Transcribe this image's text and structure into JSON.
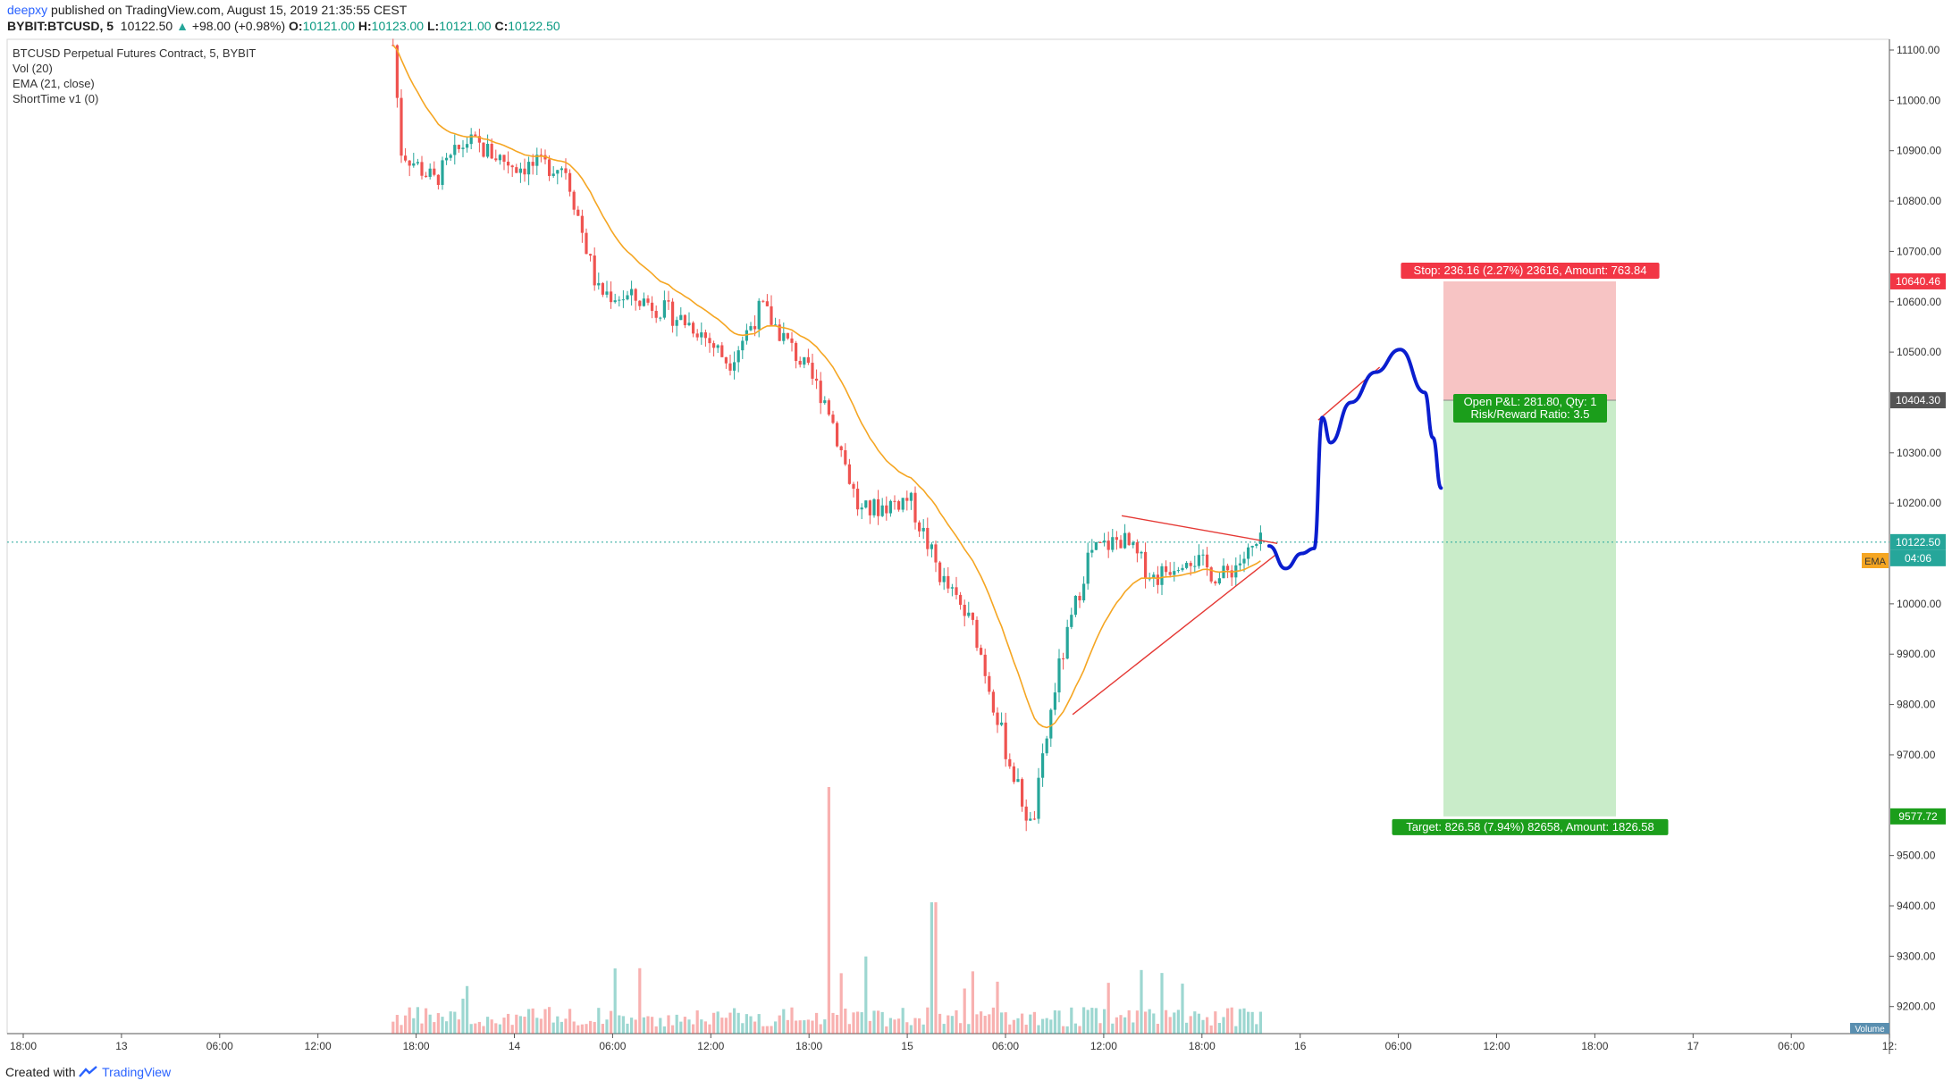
{
  "header": {
    "publisher": "deepxy",
    "published_text": "published on TradingView.com, August 15, 2019 21:35:55 CEST",
    "symbol": "BYBIT:BTCUSD, 5",
    "last": "10122.50",
    "change": "+98.00 (+0.98%)",
    "open_label": "O:",
    "open": "10121.00",
    "high_label": "H:",
    "high": "10123.00",
    "low_label": "L:",
    "low": "10121.00",
    "close_label": "C:",
    "close": "10122.50"
  },
  "legend": {
    "title": "BTCUSD Perpetual Futures Contract, 5, BYBIT",
    "vol": "Vol (20)",
    "ema": "EMA (21, close)",
    "shorttime": "ShortTime v1 (0)"
  },
  "price_axis": {
    "ticks": [
      "11100.00",
      "11000.00",
      "10900.00",
      "10800.00",
      "10700.00",
      "10600.00",
      "10500.00",
      "10300.00",
      "10200.00",
      "10000.00",
      "9900.00",
      "9800.00",
      "9700.00",
      "9500.00",
      "9400.00",
      "9300.00",
      "9200.00"
    ],
    "labels": {
      "stop": "10640.46",
      "entry": "10404.30",
      "last": "10122.50",
      "countdown": "04:06",
      "target": "9577.72",
      "ema": "EMA",
      "volume": "Volume"
    }
  },
  "time_axis": {
    "ticks": [
      "18:00",
      "13",
      "06:00",
      "12:00",
      "18:00",
      "14",
      "06:00",
      "12:00",
      "18:00",
      "15",
      "06:00",
      "12:00",
      "18:00",
      "16",
      "06:00",
      "12:00",
      "18:00",
      "17",
      "06:00",
      "12:"
    ]
  },
  "position": {
    "stop_text": "Stop: 236.16 (2.27%) 23616, Amount: 763.84",
    "pnl_text": "Open P&L: 281.80, Qty: 1",
    "rr_text": "Risk/Reward Ratio: 3.5",
    "target_text": "Target: 826.58 (7.94%) 82658, Amount: 1826.58"
  },
  "footer": {
    "created_with": "Created with",
    "brand": "TradingView"
  },
  "colors": {
    "up": "#26a69a",
    "down": "#ef5350",
    "ema": "#f5a623",
    "stop_zone": "#f7c4c4",
    "target_zone": "#c9ecc9",
    "stop_label": "#f23645",
    "target_label": "#1b9e1b",
    "projection": "#0a1ecf",
    "trendline": "#e53935"
  },
  "chart_data": {
    "type": "candlestick",
    "symbol": "BYBIT:BTCUSD",
    "interval": "5",
    "x_ticks": [
      "18:00",
      "13",
      "06:00",
      "12:00",
      "18:00",
      "14",
      "06:00",
      "12:00",
      "18:00",
      "15",
      "06:00",
      "12:00",
      "18:00",
      "16",
      "06:00",
      "12:00",
      "18:00",
      "17",
      "06:00",
      "12:"
    ],
    "ylim": [
      9120,
      11125
    ],
    "price_path": [
      {
        "t": "Aug 13 16:30",
        "price": 11110
      },
      {
        "t": "Aug 13 17:00",
        "price": 10900
      },
      {
        "t": "Aug 13 19:00",
        "price": 10840
      },
      {
        "t": "Aug 13 21:00",
        "price": 10920
      },
      {
        "t": "Aug 14 00:00",
        "price": 10870
      },
      {
        "t": "Aug 14 03:00",
        "price": 10870
      },
      {
        "t": "Aug 14 05:00",
        "price": 10620
      },
      {
        "t": "Aug 14 08:00",
        "price": 10600
      },
      {
        "t": "Aug 14 11:00",
        "price": 10550
      },
      {
        "t": "Aug 14 13:00",
        "price": 10480
      },
      {
        "t": "Aug 14 15:00",
        "price": 10590
      },
      {
        "t": "Aug 14 17:00",
        "price": 10500
      },
      {
        "t": "Aug 14 19:00",
        "price": 10400
      },
      {
        "t": "Aug 14 21:00",
        "price": 10180
      },
      {
        "t": "Aug 15 00:00",
        "price": 10210
      },
      {
        "t": "Aug 15 02:00",
        "price": 10050
      },
      {
        "t": "Aug 15 04:00",
        "price": 9950
      },
      {
        "t": "Aug 15 06:00",
        "price": 9700
      },
      {
        "t": "Aug 15 07:30",
        "price": 9550
      },
      {
        "t": "Aug 15 09:00",
        "price": 9850
      },
      {
        "t": "Aug 15 11:00",
        "price": 10100
      },
      {
        "t": "Aug 15 13:00",
        "price": 10130
      },
      {
        "t": "Aug 15 15:00",
        "price": 10050
      },
      {
        "t": "Aug 15 17:00",
        "price": 10100
      },
      {
        "t": "Aug 15 19:00",
        "price": 10050
      },
      {
        "t": "Aug 15 21:35",
        "price": 10122.5
      }
    ],
    "indicators": [
      "Vol (20)",
      "EMA (21, close)",
      "ShortTime v1 (0)"
    ],
    "last_price": 10122.5,
    "position": {
      "side": "short",
      "entry": 10404.3,
      "stop": 10640.46,
      "target": 9577.72,
      "risk_reward": 3.5
    },
    "drawings": {
      "triangle_upper": [
        {
          "t": "Aug 15 13:00",
          "price": 10175
        },
        {
          "t": "Aug 15 22:30",
          "price": 10120
        }
      ],
      "triangle_lower": [
        {
          "t": "Aug 15 10:00",
          "price": 9780
        },
        {
          "t": "Aug 15 22:30",
          "price": 10100
        }
      ],
      "channel_upper": [
        {
          "t": "Aug 16 01:00",
          "price": 10365
        },
        {
          "t": "Aug 16 04:45",
          "price": 10470
        }
      ],
      "projection_path": [
        {
          "t": "Aug 15 22:00",
          "price": 10115
        },
        {
          "t": "Aug 15 23:00",
          "price": 10070
        },
        {
          "t": "Aug 16 00:00",
          "price": 10100
        },
        {
          "t": "Aug 16 00:45",
          "price": 10110
        },
        {
          "t": "Aug 16 01:15",
          "price": 10370
        },
        {
          "t": "Aug 16 01:45",
          "price": 10320
        },
        {
          "t": "Aug 16 03:00",
          "price": 10400
        },
        {
          "t": "Aug 16 04:30",
          "price": 10460
        },
        {
          "t": "Aug 16 06:00",
          "price": 10505
        },
        {
          "t": "Aug 16 07:30",
          "price": 10420
        },
        {
          "t": "Aug 16 08:00",
          "price": 10330
        },
        {
          "t": "Aug 16 08:30",
          "price": 10230
        }
      ]
    }
  }
}
